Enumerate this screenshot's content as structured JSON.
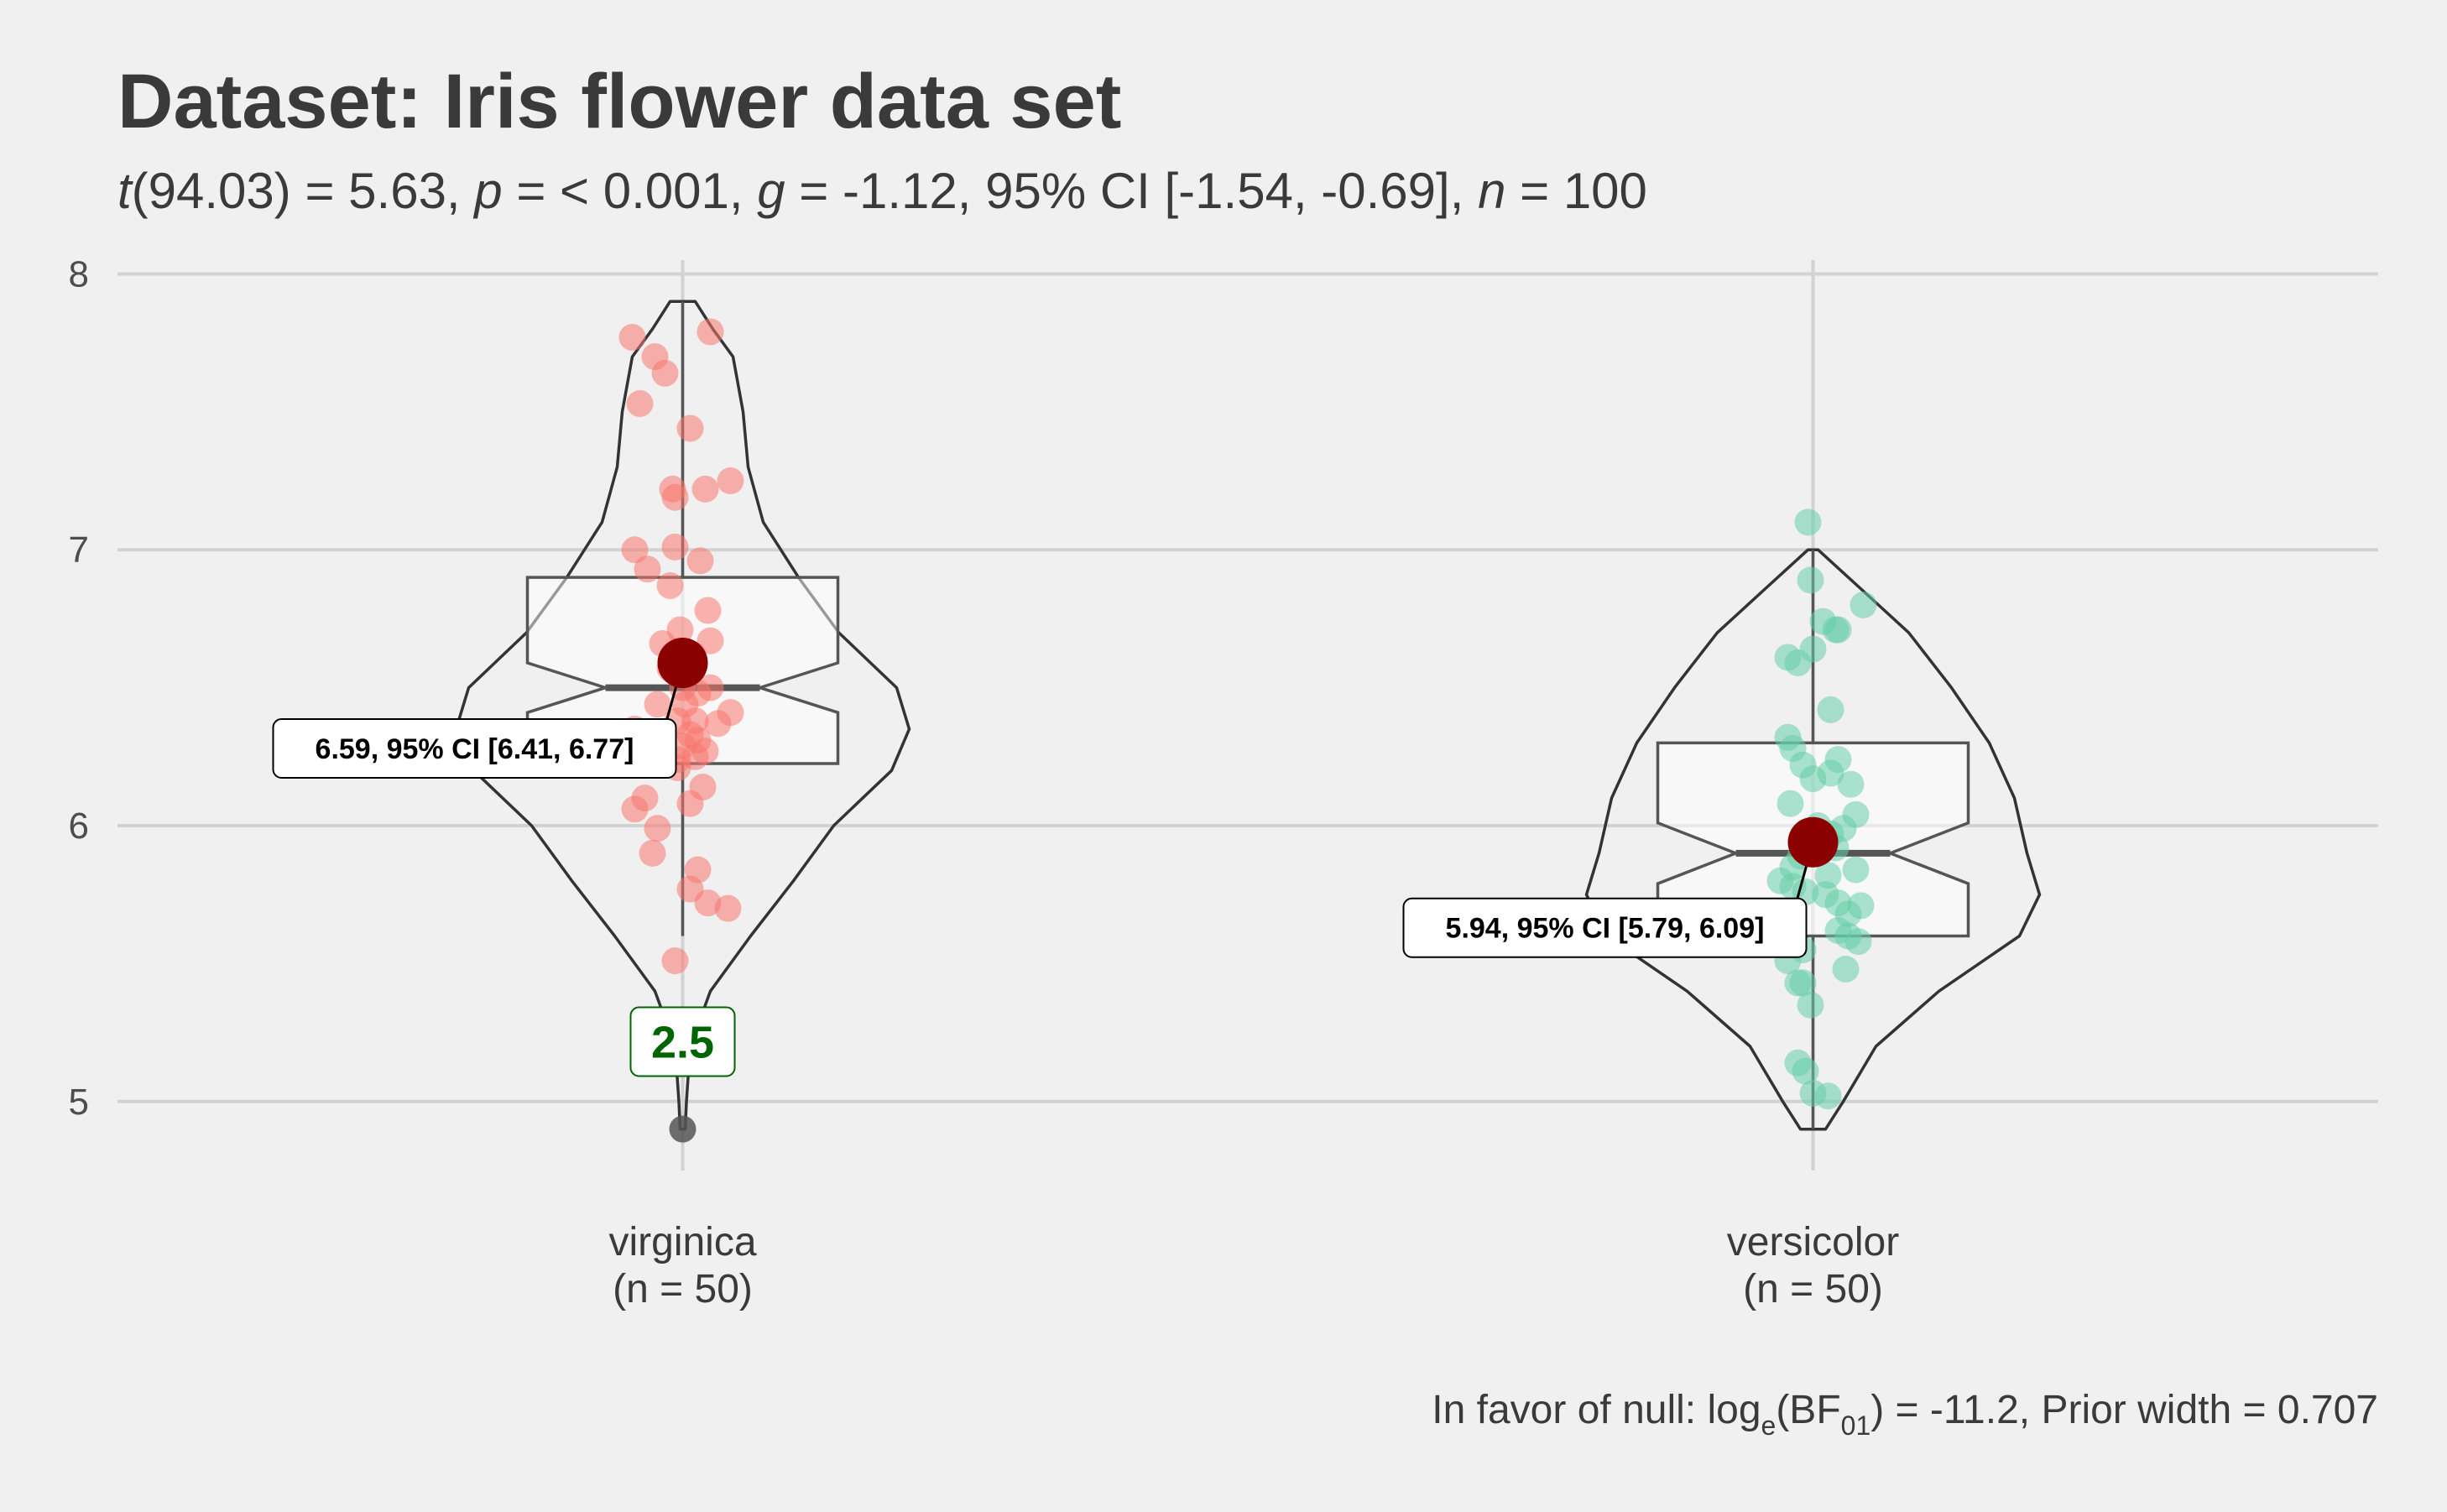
{
  "chart_data": {
    "type": "violin",
    "title": "Dataset: Iris flower data set",
    "subtitle": {
      "t_italic": "t",
      "t_rest": "(94.03) = 5.63, ",
      "p_italic": "p",
      "p_rest": " = < 0.001, ",
      "g_italic": "g",
      "g_rest": " = -1.12, 95% CI [-1.54, -0.69], ",
      "n_italic": "n",
      "n_rest": " = 100"
    },
    "caption": {
      "prefix": "In favor of null: log",
      "sub_e": "e",
      "bf": "(BF",
      "sub_01": "01",
      "rest": ") = -11.2, Prior width = 0.707"
    },
    "ylim": [
      4.75,
      8.05
    ],
    "yticks": [
      "5",
      "6",
      "7",
      "8"
    ],
    "grid": true,
    "groups": [
      {
        "name": "virginica",
        "n_label": "(n = 50)",
        "color": "#f8766d",
        "mean": 6.59,
        "mean_label": "6.59, 95% CI [6.41, 6.77]",
        "box": {
          "min": 5.6,
          "q1": 6.225,
          "median": 6.5,
          "q3": 6.9,
          "max": 7.9,
          "notch_lo": 6.41,
          "notch_hi": 6.59
        },
        "outlier": {
          "value": 4.9,
          "label": "2.5"
        },
        "violin": [
          [
            4.9,
            0.01
          ],
          [
            5.0,
            0.015
          ],
          [
            5.2,
            0.03
          ],
          [
            5.4,
            0.11
          ],
          [
            5.6,
            0.27
          ],
          [
            5.8,
            0.44
          ],
          [
            6.0,
            0.6
          ],
          [
            6.2,
            0.83
          ],
          [
            6.35,
            0.9
          ],
          [
            6.5,
            0.85
          ],
          [
            6.7,
            0.62
          ],
          [
            6.9,
            0.46
          ],
          [
            7.1,
            0.32
          ],
          [
            7.3,
            0.26
          ],
          [
            7.5,
            0.24
          ],
          [
            7.7,
            0.2
          ],
          [
            7.8,
            0.12
          ],
          [
            7.9,
            0.05
          ]
        ],
        "points": [
          [
            7.77,
            -0.2
          ],
          [
            7.79,
            0.11
          ],
          [
            7.7,
            -0.11
          ],
          [
            7.64,
            -0.07
          ],
          [
            7.53,
            -0.17
          ],
          [
            7.44,
            0.03
          ],
          [
            7.25,
            0.19
          ],
          [
            7.22,
            -0.04
          ],
          [
            7.22,
            0.09
          ],
          [
            7.19,
            -0.03
          ],
          [
            7.0,
            -0.19
          ],
          [
            6.96,
            0.07
          ],
          [
            6.93,
            -0.14
          ],
          [
            7.01,
            -0.03
          ],
          [
            6.87,
            -0.05
          ],
          [
            6.78,
            0.1
          ],
          [
            6.71,
            -0.01
          ],
          [
            6.67,
            0.11
          ],
          [
            6.66,
            -0.08
          ],
          [
            6.62,
            0.04
          ],
          [
            6.57,
            -0.05
          ],
          [
            6.5,
            0.11
          ],
          [
            6.5,
            0.0
          ],
          [
            6.44,
            0.01
          ],
          [
            6.44,
            -0.1
          ],
          [
            6.38,
            -0.02
          ],
          [
            6.38,
            0.05
          ],
          [
            6.37,
            0.14
          ],
          [
            6.41,
            0.19
          ],
          [
            6.33,
            0.03
          ],
          [
            6.29,
            0.0
          ],
          [
            6.31,
            0.06
          ],
          [
            6.27,
            0.09
          ],
          [
            6.25,
            0.05
          ],
          [
            6.24,
            -0.02
          ],
          [
            6.25,
            -0.19
          ],
          [
            6.08,
            0.03
          ],
          [
            6.1,
            -0.15
          ],
          [
            6.06,
            -0.19
          ],
          [
            5.99,
            -0.1
          ],
          [
            5.9,
            -0.12
          ],
          [
            5.84,
            0.06
          ],
          [
            5.77,
            0.03
          ],
          [
            5.72,
            0.1
          ],
          [
            5.7,
            0.18
          ],
          [
            5.51,
            -0.03
          ],
          [
            6.48,
            0.06
          ],
          [
            6.21,
            -0.02
          ],
          [
            6.14,
            0.08
          ],
          [
            6.35,
            -0.19
          ]
        ]
      },
      {
        "name": "versicolor",
        "n_label": "(n = 50)",
        "color": "#66cdaa",
        "mean": 5.94,
        "mean_label": "5.94, 95% CI [5.79, 6.09]",
        "box": {
          "min": 4.9,
          "q1": 5.6,
          "median": 5.9,
          "q3": 6.3,
          "max": 7.0,
          "notch_lo": 5.79,
          "notch_hi": 6.01
        },
        "violin": [
          [
            4.9,
            0.05
          ],
          [
            5.0,
            0.12
          ],
          [
            5.2,
            0.25
          ],
          [
            5.4,
            0.5
          ],
          [
            5.6,
            0.82
          ],
          [
            5.75,
            0.9
          ],
          [
            5.9,
            0.85
          ],
          [
            6.1,
            0.8
          ],
          [
            6.3,
            0.7
          ],
          [
            6.5,
            0.55
          ],
          [
            6.7,
            0.38
          ],
          [
            6.85,
            0.2
          ],
          [
            7.0,
            0.02
          ]
        ],
        "points": [
          [
            7.1,
            -0.02
          ],
          [
            6.89,
            -0.01
          ],
          [
            6.8,
            0.2
          ],
          [
            6.74,
            0.04
          ],
          [
            6.71,
            0.09
          ],
          [
            6.71,
            0.1
          ],
          [
            6.64,
            0.0
          ],
          [
            6.61,
            -0.1
          ],
          [
            6.59,
            -0.06
          ],
          [
            6.42,
            0.07
          ],
          [
            6.32,
            -0.1
          ],
          [
            6.28,
            -0.08
          ],
          [
            6.24,
            0.1
          ],
          [
            6.22,
            -0.04
          ],
          [
            6.17,
            0.0
          ],
          [
            6.19,
            0.07
          ],
          [
            6.15,
            0.15
          ],
          [
            6.08,
            -0.09
          ],
          [
            6.04,
            0.17
          ],
          [
            6.0,
            0.02
          ],
          [
            5.99,
            0.12
          ],
          [
            5.95,
            -0.03
          ],
          [
            5.92,
            0.09
          ],
          [
            5.89,
            -0.05
          ],
          [
            5.85,
            -0.08
          ],
          [
            5.84,
            0.17
          ],
          [
            5.82,
            0.06
          ],
          [
            5.78,
            -0.08
          ],
          [
            5.76,
            -0.03
          ],
          [
            5.75,
            0.05
          ],
          [
            5.72,
            0.1
          ],
          [
            5.71,
            0.19
          ],
          [
            5.68,
            0.14
          ],
          [
            5.66,
            -0.13
          ],
          [
            5.62,
            0.1
          ],
          [
            5.6,
            0.14
          ],
          [
            5.58,
            0.18
          ],
          [
            5.55,
            -0.04
          ],
          [
            5.51,
            -0.1
          ],
          [
            5.48,
            0.13
          ],
          [
            5.43,
            -0.06
          ],
          [
            5.43,
            -0.04
          ],
          [
            5.35,
            -0.01
          ],
          [
            5.14,
            -0.06
          ],
          [
            5.11,
            -0.03
          ],
          [
            5.03,
            0.0
          ],
          [
            5.02,
            0.06
          ],
          [
            5.97,
            0.07
          ],
          [
            5.65,
            -0.1
          ],
          [
            5.8,
            -0.13
          ]
        ]
      }
    ]
  }
}
